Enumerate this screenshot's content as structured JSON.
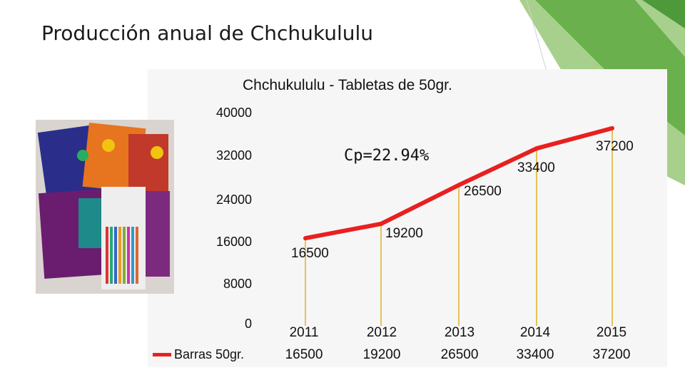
{
  "slide": {
    "title": "Producción anual de Chchukululu"
  },
  "chart_data": {
    "type": "line",
    "title": "Chchukululu - Tabletas de 50gr.",
    "categories": [
      "2011",
      "2012",
      "2013",
      "2014",
      "2015"
    ],
    "series": [
      {
        "name": "Barras 50gr.",
        "values": [
          16500,
          19200,
          26500,
          33400,
          37200
        ],
        "color": "#e8201f"
      }
    ],
    "ylim": [
      0,
      40000
    ],
    "yticks": [
      "40000",
      "32000",
      "24000",
      "16000",
      "8000",
      "0"
    ],
    "annotation": "Cp=22.94%",
    "data_labels": [
      "16500",
      "19200",
      "26500",
      "33400",
      "37200"
    ],
    "grid": false,
    "legend": "bottom-left data table"
  },
  "colors": {
    "accent_green": "#6ab04c",
    "light_green": "#a8d08d",
    "series_red": "#e8201f",
    "drop_line": "#e6c25a"
  },
  "image": {
    "name": "chocolate-product-photo"
  }
}
